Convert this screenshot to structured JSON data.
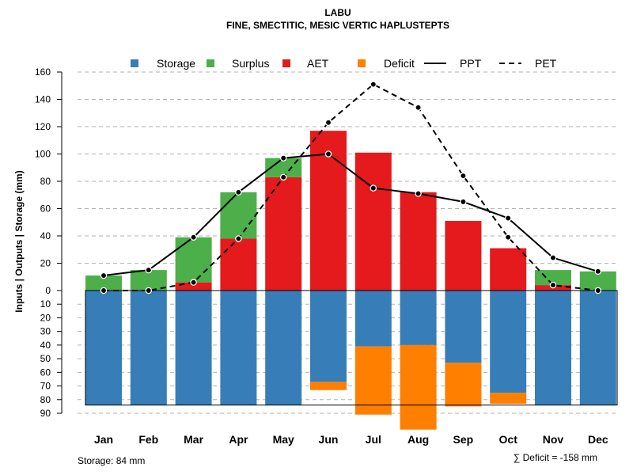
{
  "chart_data": {
    "type": "bar",
    "title": "LABU",
    "subtitle": "FINE, SMECTITIC, MESIC VERTIC HAPLUSTEPTS",
    "ylabel": "Inputs | Outputs | Storage     (mm)",
    "ylim_top": [
      0,
      160
    ],
    "ylim_bottom": [
      0,
      90
    ],
    "yticks_top": [
      "0",
      "20",
      "40",
      "60",
      "80",
      "100",
      "120",
      "140",
      "160"
    ],
    "yticks_bottom": [
      "10",
      "20",
      "30",
      "40",
      "50",
      "60",
      "70",
      "80",
      "90"
    ],
    "categories": [
      "Jan",
      "Feb",
      "Mar",
      "Apr",
      "May",
      "Jun",
      "Jul",
      "Aug",
      "Sep",
      "Oct",
      "Nov",
      "Dec"
    ],
    "legend": [
      {
        "name": "Storage",
        "color": "#377EB8",
        "kind": "box"
      },
      {
        "name": "Surplus",
        "color": "#4DAF4A",
        "kind": "box"
      },
      {
        "name": "AET",
        "color": "#E41A1C",
        "kind": "box"
      },
      {
        "name": "Deficit",
        "color": "#FF7F00",
        "kind": "box"
      },
      {
        "name": "PPT",
        "color": "#000000",
        "kind": "line"
      },
      {
        "name": "PET",
        "color": "#000000",
        "kind": "dash"
      }
    ],
    "series_top": [
      {
        "name": "AET",
        "color": "#E41A1C",
        "values": [
          0,
          0,
          6,
          38,
          83,
          117,
          101,
          72,
          51,
          31,
          4,
          0
        ]
      },
      {
        "name": "Surplus",
        "color": "#4DAF4A",
        "values": [
          11,
          15,
          33,
          34,
          14,
          0,
          0,
          0,
          0,
          0,
          11,
          14
        ]
      }
    ],
    "series_bottom": [
      {
        "name": "Storage",
        "color": "#377EB8",
        "values": [
          84,
          84,
          84,
          84,
          84,
          67,
          41,
          40,
          53,
          75,
          84,
          84
        ]
      },
      {
        "name": "Deficit",
        "color": "#FF7F00",
        "values": [
          0,
          0,
          0,
          0,
          0,
          6,
          50,
          62,
          32,
          8,
          0,
          0
        ]
      }
    ],
    "lines": [
      {
        "name": "PPT",
        "dashed": false,
        "values": [
          11,
          15,
          39,
          72,
          97,
          100,
          75,
          71,
          65,
          53,
          24,
          14
        ]
      },
      {
        "name": "PET",
        "dashed": true,
        "values": [
          0,
          0,
          6,
          38,
          83,
          123,
          151,
          134,
          84,
          39,
          4,
          0
        ]
      }
    ],
    "storage_capacity": 84,
    "storage_note": "Storage: 84 mm",
    "deficit_note": "∑ Deficit = -158 mm"
  }
}
